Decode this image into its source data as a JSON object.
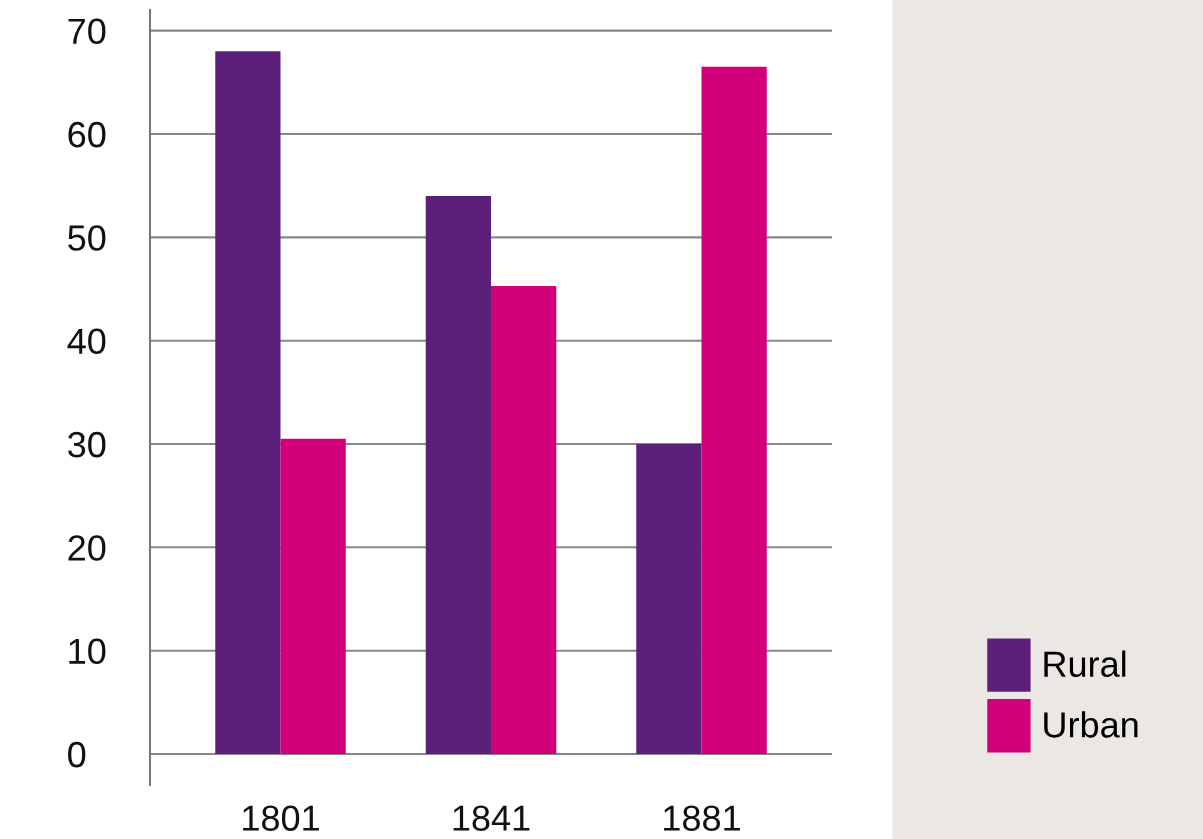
{
  "chart_data": {
    "type": "bar",
    "categories": [
      "1801",
      "1841",
      "1881"
    ],
    "series": [
      {
        "name": "Rural",
        "color": "#5c1f7a",
        "values": [
          68,
          54,
          30
        ]
      },
      {
        "name": "Urban",
        "color": "#d1007a",
        "values": [
          30.5,
          45.3,
          66.5
        ]
      }
    ],
    "ylim": [
      -3,
      72
    ],
    "yticks": [
      0,
      10,
      20,
      30,
      40,
      50,
      60,
      70
    ],
    "grid": "y",
    "legend": "bottom right"
  }
}
